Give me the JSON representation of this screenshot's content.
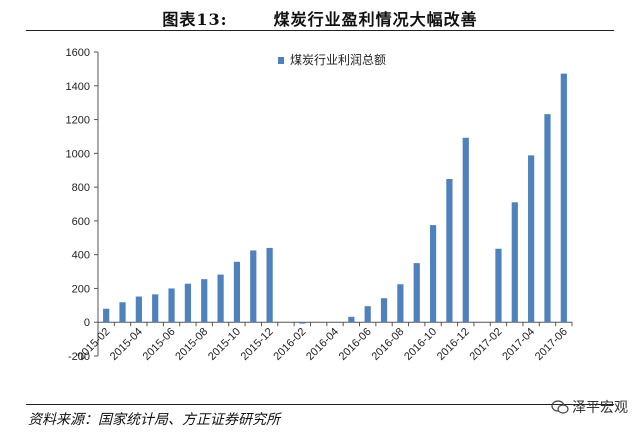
{
  "figure": {
    "label": "图表13:",
    "heading": "煤炭行业盈利情况大幅改善"
  },
  "footer": {
    "source": "资料来源：国家统计局、方正证券研究所",
    "watermark": "泽平宏观"
  },
  "chart_data": {
    "type": "bar",
    "legend_position": "top-center",
    "grid": false,
    "bar_color": "#4F81BD",
    "series": [
      {
        "name": "煤炭行业利润总额",
        "values": [
          80,
          118,
          152,
          165,
          200,
          228,
          255,
          282,
          358,
          425,
          440,
          null,
          -8,
          null,
          null,
          32,
          95,
          142,
          225,
          350,
          575,
          848,
          1092,
          null,
          435,
          710,
          988,
          1232,
          1472
        ]
      }
    ],
    "categories": [
      "2015-02",
      "2015-03",
      "2015-04",
      "2015-05",
      "2015-06",
      "2015-07",
      "2015-08",
      "2015-09",
      "2015-10",
      "2015-11",
      "2015-12",
      "2016-01",
      "2016-02",
      "2016-03",
      "2016-04",
      "2016-05",
      "2016-06",
      "2016-07",
      "2016-08",
      "2016-09",
      "2016-10",
      "2016-11",
      "2016-12",
      "2017-01",
      "2017-02",
      "2017-03",
      "2017-04",
      "2017-05",
      "2017-06"
    ],
    "x_tick_labels": [
      "2015-02",
      "2015-04",
      "2015-06",
      "2015-08",
      "2015-10",
      "2015-12",
      "2016-02",
      "2016-04",
      "2016-06",
      "2016-08",
      "2016-10",
      "2016-12",
      "2017-02",
      "2017-04",
      "2017-06"
    ],
    "y_ticks": [
      -200,
      0,
      200,
      400,
      600,
      800,
      1000,
      1200,
      1400,
      1600
    ],
    "ylim": [
      -200,
      1600
    ],
    "xlabel": "",
    "ylabel": ""
  }
}
